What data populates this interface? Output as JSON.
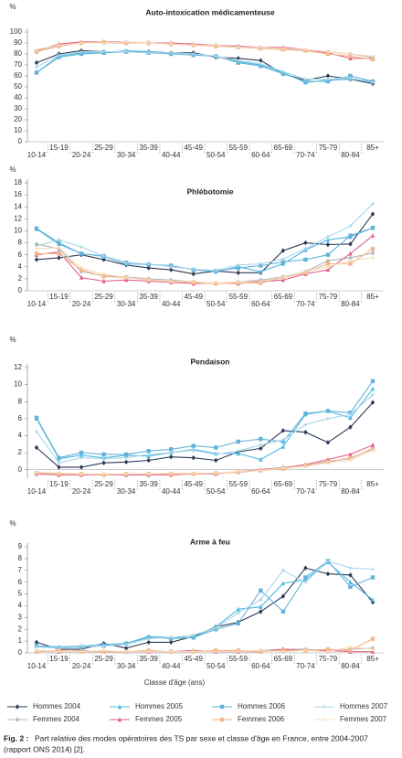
{
  "chart_data": [
    {
      "type": "line",
      "title": "Auto-intoxication médicamenteuse",
      "y_unit": "%",
      "categories": [
        "10-14",
        "15-19",
        "20-24",
        "25-29",
        "30-34",
        "35-39",
        "40-44",
        "45-49",
        "50-54",
        "55-59",
        "60-64",
        "65-69",
        "70-74",
        "75-79",
        "80-84",
        "85+"
      ],
      "ylim": [
        0,
        100
      ],
      "yticks": [
        0,
        10,
        20,
        30,
        40,
        50,
        60,
        70,
        80,
        90,
        100
      ],
      "series": [
        {
          "color": "#2b3a55",
          "marker": "diamond",
          "values": [
            72,
            80,
            83,
            82,
            82,
            82,
            81,
            81,
            77,
            76,
            74,
            62,
            56,
            60,
            57,
            53
          ]
        },
        {
          "color": "#4fb8e0",
          "marker": "triangle",
          "values": [
            63,
            78,
            81,
            81,
            83,
            82,
            81,
            80,
            78,
            73,
            70,
            63,
            54,
            56,
            57,
            55
          ]
        },
        {
          "color": "#62b3d8",
          "marker": "square",
          "values": [
            63,
            77,
            80,
            81,
            82,
            81,
            80,
            79,
            78,
            72,
            69,
            62,
            55,
            55,
            60,
            55
          ]
        },
        {
          "color": "#a9d6ea",
          "marker": "plus",
          "values": [
            68,
            79,
            82,
            82,
            82,
            81,
            81,
            80,
            78,
            74,
            71,
            64,
            57,
            57,
            58,
            54
          ]
        },
        {
          "color": "#b5b5b5",
          "marker": "diamond",
          "values": [
            83,
            88,
            90,
            90,
            90,
            90,
            89,
            88,
            88,
            87,
            86,
            85,
            83,
            82,
            80,
            77
          ]
        },
        {
          "color": "#e2608a",
          "marker": "triangle",
          "values": [
            83,
            89,
            91,
            91,
            91,
            90,
            90,
            89,
            88,
            87,
            86,
            86,
            84,
            81,
            76,
            76
          ]
        },
        {
          "color": "#f2b58c",
          "marker": "square",
          "values": [
            82,
            87,
            90,
            91,
            90,
            90,
            89,
            88,
            87,
            86,
            85,
            84,
            83,
            80,
            78,
            75
          ]
        },
        {
          "color": "#f6dcbc",
          "marker": "plus",
          "values": [
            84,
            88,
            90,
            90,
            91,
            90,
            89,
            88,
            88,
            86,
            86,
            85,
            84,
            82,
            80,
            78
          ]
        }
      ]
    },
    {
      "type": "line",
      "title": "Phlébotomie",
      "y_unit": "%",
      "categories": [
        "10-14",
        "15-19",
        "20-24",
        "25-29",
        "30-34",
        "35-39",
        "40-44",
        "45-49",
        "50-54",
        "55-59",
        "60-64",
        "65-69",
        "70-74",
        "75-79",
        "80-84",
        "85+"
      ],
      "ylim": [
        0,
        18
      ],
      "yticks": [
        0,
        2,
        4,
        6,
        8,
        10,
        12,
        14,
        16,
        18
      ],
      "series": [
        {
          "color": "#2b3a55",
          "marker": "diamond",
          "values": [
            5.2,
            5.5,
            6,
            5.2,
            4.3,
            3.8,
            3.5,
            2.8,
            3.3,
            3,
            3,
            6.7,
            8,
            7.7,
            7.8,
            12.8
          ]
        },
        {
          "color": "#4fb8e0",
          "marker": "triangle",
          "values": [
            10.3,
            7.8,
            6.2,
            5.7,
            4.5,
            4.4,
            4.2,
            3.5,
            3.2,
            4,
            3.2,
            4.5,
            6.8,
            8.5,
            9,
            10.5
          ]
        },
        {
          "color": "#62b3d8",
          "marker": "square",
          "values": [
            10.4,
            8,
            6.2,
            5.8,
            4.7,
            4.4,
            4.2,
            3.5,
            3.3,
            3.8,
            4.2,
            4.8,
            5.2,
            6,
            9.2,
            10.5
          ]
        },
        {
          "color": "#a9d6ea",
          "marker": "plus",
          "values": [
            7.5,
            8.5,
            7.3,
            5.8,
            4.6,
            4.5,
            4,
            3.6,
            3.4,
            4.3,
            4.5,
            5.3,
            7,
            9,
            10.8,
            14.5
          ]
        },
        {
          "color": "#b5b5b5",
          "marker": "diamond",
          "values": [
            7.8,
            7,
            3.2,
            2.5,
            2.3,
            2,
            1.8,
            1.5,
            1.2,
            1.5,
            1.8,
            2.3,
            3.2,
            5,
            5.5,
            6.3
          ]
        },
        {
          "color": "#e2608a",
          "marker": "triangle",
          "values": [
            6,
            6.5,
            2.2,
            1.6,
            1.8,
            1.6,
            1.4,
            1.2,
            1.3,
            1.2,
            1.5,
            1.8,
            2.8,
            3.5,
            6.2,
            9.2
          ]
        },
        {
          "color": "#f2b58c",
          "marker": "square",
          "values": [
            6.2,
            6.2,
            3.5,
            2.4,
            2.2,
            1.8,
            1.5,
            1.4,
            1.2,
            1.3,
            1.3,
            2.2,
            3,
            4.5,
            4.5,
            7
          ]
        },
        {
          "color": "#f6dcbc",
          "marker": "plus",
          "values": [
            7,
            7.2,
            3.8,
            2.8,
            2.2,
            1.8,
            1.6,
            1.5,
            1.3,
            1.5,
            1.6,
            2.2,
            3.2,
            4,
            5,
            5.5
          ]
        }
      ]
    },
    {
      "type": "line",
      "title": "Pendaison",
      "y_unit": "%",
      "categories": [
        "10-14",
        "15-19",
        "20-24",
        "25-29",
        "30-34",
        "35-39",
        "40-44",
        "45-49",
        "50-54",
        "55-59",
        "60-64",
        "65-69",
        "70-74",
        "75-79",
        "80-84",
        "85+"
      ],
      "ylim": [
        -1,
        12
      ],
      "yticks": [
        0,
        2,
        4,
        6,
        8,
        10,
        12
      ],
      "series": [
        {
          "color": "#2b3a55",
          "marker": "diamond",
          "values": [
            2.6,
            0.3,
            0.3,
            0.8,
            0.9,
            1.1,
            1.5,
            1.4,
            1.1,
            2.1,
            2.5,
            4.6,
            4.4,
            3.2,
            5,
            7.9
          ]
        },
        {
          "color": "#4fb8e0",
          "marker": "triangle",
          "values": [
            6,
            1.3,
            1.7,
            1.4,
            1.7,
            1.6,
            2,
            2.4,
            1.9,
            1.9,
            1.2,
            2.7,
            6.5,
            6.9,
            6.1,
            9.5
          ]
        },
        {
          "color": "#62b3d8",
          "marker": "square",
          "values": [
            6.1,
            1.4,
            2,
            1.8,
            1.8,
            2.2,
            2.4,
            2.8,
            2.6,
            3.3,
            3.6,
            3.3,
            6.6,
            6.9,
            6.7,
            10.4
          ]
        },
        {
          "color": "#a9d6ea",
          "marker": "plus",
          "values": [
            4.5,
            0.8,
            1.4,
            1.3,
            1.4,
            1.8,
            2,
            2.3,
            1.8,
            2.2,
            2.9,
            3.5,
            5.3,
            6,
            6.5,
            8.8
          ]
        },
        {
          "color": "#b5b5b5",
          "marker": "diamond",
          "values": [
            -0.4,
            -0.5,
            -0.6,
            -0.6,
            -0.6,
            -0.6,
            -0.5,
            -0.5,
            -0.4,
            -0.3,
            0,
            0.3,
            0.5,
            1,
            1.3,
            2.5
          ]
        },
        {
          "color": "#e2608a",
          "marker": "triangle",
          "values": [
            -0.5,
            -0.6,
            -0.6,
            -0.6,
            -0.6,
            -0.6,
            -0.6,
            -0.5,
            -0.5,
            -0.2,
            0,
            0.2,
            0.6,
            1.2,
            1.8,
            2.9
          ]
        },
        {
          "color": "#f2b58c",
          "marker": "square",
          "values": [
            -0.4,
            -0.5,
            -0.5,
            -0.6,
            -0.5,
            -0.5,
            -0.5,
            -0.5,
            -0.4,
            -0.3,
            -0.1,
            0.1,
            0.5,
            0.9,
            1.4,
            2.4
          ]
        },
        {
          "color": "#f6dcbc",
          "marker": "plus",
          "values": [
            -0.3,
            -0.4,
            -0.5,
            -0.5,
            -0.5,
            -0.5,
            -0.4,
            -0.4,
            -0.4,
            -0.2,
            -0.1,
            0.2,
            0.4,
            0.8,
            1.1,
            2.3
          ]
        }
      ]
    },
    {
      "type": "line",
      "title": "Arme à feu",
      "y_unit": "%",
      "xlabel": "Classe d'âge (ans)",
      "categories": [
        "10-14",
        "15-19",
        "20-24",
        "25-29",
        "30-34",
        "35-39",
        "40-44",
        "45-49",
        "50-54",
        "55-59",
        "60-64",
        "65-69",
        "70-74",
        "75-79",
        "80-84",
        "85+"
      ],
      "ylim": [
        0,
        9
      ],
      "yticks": [
        0,
        1,
        2,
        3,
        4,
        5,
        6,
        7,
        8,
        9
      ],
      "series": [
        {
          "name": "Hommes 2004",
          "color": "#2b3a55",
          "marker": "diamond",
          "values": [
            0.9,
            0.3,
            0.3,
            0.8,
            0.4,
            0.9,
            0.9,
            1.4,
            2.2,
            2.6,
            3.5,
            4.8,
            7.2,
            6.7,
            6.6,
            4.3
          ]
        },
        {
          "name": "Hommes 2005",
          "color": "#4fb8e0",
          "marker": "triangle",
          "values": [
            0.6,
            0.5,
            0.6,
            0.7,
            0.8,
            1.4,
            1.3,
            1.3,
            2.2,
            3.7,
            3.9,
            5.9,
            6.2,
            7.7,
            6,
            4.5
          ]
        },
        {
          "name": "Hommes 2006",
          "color": "#62b3d8",
          "marker": "square",
          "values": [
            0.6,
            0.4,
            0.5,
            0.6,
            0.8,
            1.3,
            1.2,
            1.3,
            2,
            2.5,
            5.3,
            3.5,
            6.4,
            7.8,
            5.6,
            6.4
          ]
        },
        {
          "name": "Hommes 2007",
          "color": "#a9d6ea",
          "marker": "plus",
          "values": [
            0.5,
            0.4,
            0.6,
            0.6,
            0.7,
            1.2,
            1.3,
            1.5,
            2.1,
            3.4,
            4.5,
            7,
            6,
            7.8,
            7.2,
            7.1
          ]
        },
        {
          "name": "Femmes 2004",
          "color": "#b5b5b5",
          "marker": "diamond",
          "values": [
            0.1,
            0.1,
            0.2,
            0.1,
            0.1,
            0.1,
            0.1,
            0.1,
            0.1,
            0.1,
            0.2,
            0.3,
            0.3,
            0.2,
            0.3,
            0.4
          ]
        },
        {
          "name": "Femmes 2005",
          "color": "#e2608a",
          "marker": "triangle",
          "values": [
            0.2,
            0.1,
            0.1,
            0.1,
            0.1,
            0.1,
            0.1,
            0.2,
            0.1,
            0.1,
            0.1,
            0.3,
            0.2,
            0.2,
            0.1,
            0.1
          ]
        },
        {
          "name": "Femmes 2006",
          "color": "#f2b58c",
          "marker": "square",
          "values": [
            0.1,
            0.2,
            0.1,
            0.1,
            0.1,
            0.2,
            0.1,
            0.1,
            0.2,
            0.2,
            0.1,
            0.2,
            0.2,
            0.3,
            0.2,
            1.2
          ]
        },
        {
          "name": "Femmes 2007",
          "color": "#f6dcbc",
          "marker": "plus",
          "values": [
            0.2,
            0.1,
            0.1,
            0.2,
            0.1,
            0.1,
            0.1,
            0.1,
            0.1,
            0.1,
            0.2,
            0.1,
            0.2,
            0.1,
            0.5,
            0.3
          ]
        }
      ]
    }
  ],
  "caption": {
    "label": "Fig. 2 :",
    "text": "Part relative des modes opératoires des TS par sexe et classe d'âge en France, entre 2004-2007",
    "text2": "(rapport ONS 2014) [2]."
  }
}
